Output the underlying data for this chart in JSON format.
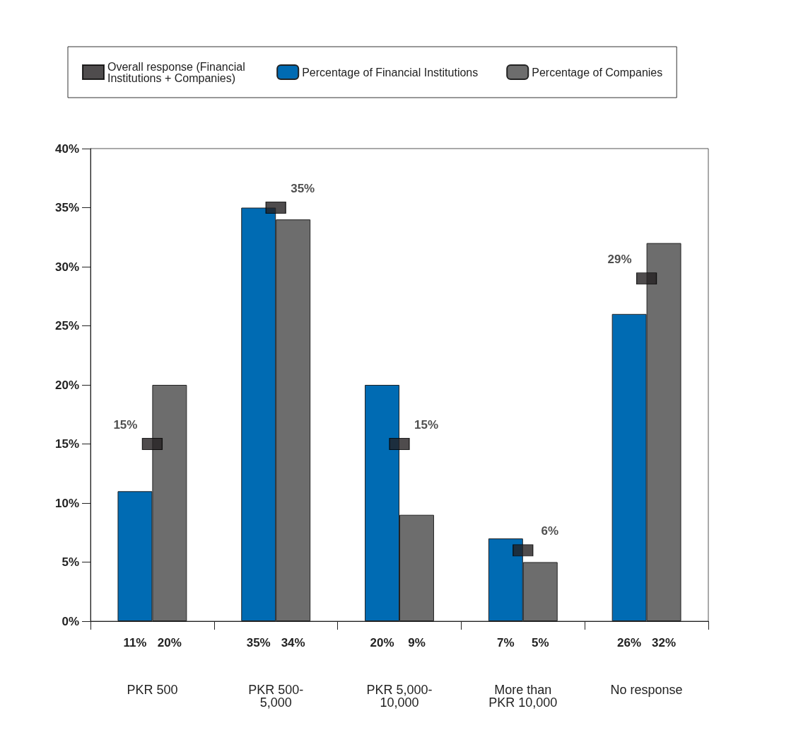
{
  "chart_data": {
    "type": "bar",
    "categories": [
      "PKR 500",
      "PKR 500-\n5,000",
      "PKR 5,000-\n10,000",
      "More than\nPKR 10,000",
      "No response"
    ],
    "series": [
      {
        "name": "Overall response (Financial Institutions + Companies)",
        "type": "scatter",
        "marker": "square",
        "color": "#231f20",
        "values": [
          15,
          35,
          15,
          6,
          29
        ],
        "value_labels": [
          "15%",
          "35%",
          "15%",
          "6%",
          "29%"
        ]
      },
      {
        "name": "Percentage of Financial Institutions",
        "color": "#006bb3",
        "values": [
          11,
          35,
          20,
          7,
          26
        ],
        "value_labels": [
          "11%",
          "35%",
          "20%",
          "7%",
          "26%"
        ]
      },
      {
        "name": "Percentage of Companies",
        "color": "#6d6d6d",
        "values": [
          20,
          34,
          9,
          5,
          32
        ],
        "value_labels": [
          "20%",
          "34%",
          "9%",
          "5%",
          "32%"
        ]
      }
    ],
    "ylim": [
      0,
      40
    ],
    "yticks": [
      {
        "value": 0,
        "label": "0%"
      },
      {
        "value": 5,
        "label": "5%"
      },
      {
        "value": 10,
        "label": "10%"
      },
      {
        "value": 15,
        "label": "15%"
      },
      {
        "value": 20,
        "label": "20%"
      },
      {
        "value": 25,
        "label": "25%"
      },
      {
        "value": 30,
        "label": "30%"
      },
      {
        "value": 35,
        "label": "35%"
      },
      {
        "value": 40,
        "label": "40%"
      }
    ],
    "grid": false,
    "legend": "top"
  }
}
